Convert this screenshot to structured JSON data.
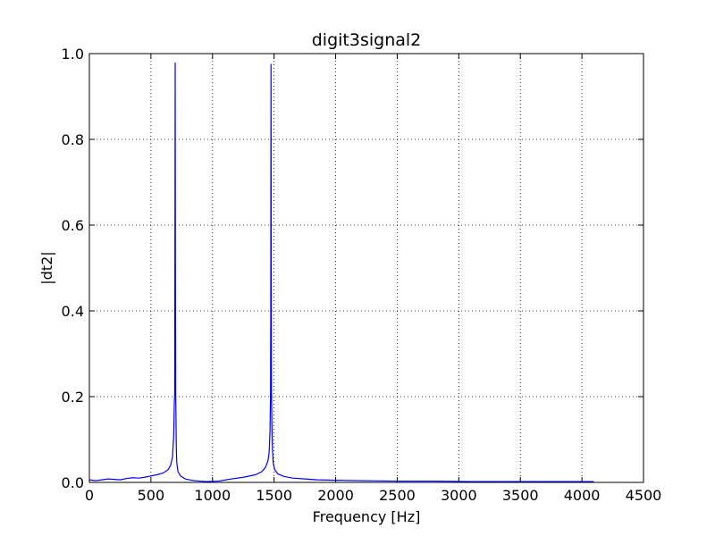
{
  "chart_data": {
    "type": "line",
    "title": "digit3signal2",
    "xlabel": "Frequency [Hz]",
    "ylabel": "|dt2|",
    "xlim": [
      0,
      4500
    ],
    "ylim": [
      0,
      1.0
    ],
    "grid": true,
    "grid_style": "dotted",
    "x_ticks": [
      0,
      500,
      1000,
      1500,
      2000,
      2500,
      3000,
      3500,
      4000,
      4500
    ],
    "x_tick_labels": [
      "0",
      "500",
      "1000",
      "1500",
      "2000",
      "2500",
      "3000",
      "3500",
      "4000",
      "4500"
    ],
    "y_ticks": [
      0,
      0.2,
      0.4,
      0.6,
      0.8,
      1.0
    ],
    "y_tick_labels": [
      "0.0",
      "0.2",
      "0.4",
      "0.6",
      "0.8",
      "1.0"
    ],
    "series": [
      {
        "color": "#0000ff",
        "x": [
          0,
          50,
          100,
          150,
          200,
          250,
          300,
          350,
          400,
          450,
          500,
          550,
          600,
          640,
          660,
          675,
          685,
          690,
          693,
          695,
          697,
          699,
          701,
          703,
          706,
          710,
          720,
          740,
          780,
          850,
          950,
          1050,
          1150,
          1250,
          1350,
          1400,
          1430,
          1450,
          1460,
          1467,
          1471,
          1473,
          1475,
          1477,
          1479,
          1482,
          1486,
          1493,
          1505,
          1530,
          1580,
          1650,
          1750,
          1850,
          2000,
          2200,
          2500,
          2800,
          3100,
          3400,
          3700,
          4000,
          4096
        ],
        "y": [
          0.006,
          0.004,
          0.006,
          0.008,
          0.007,
          0.006,
          0.009,
          0.011,
          0.01,
          0.012,
          0.015,
          0.018,
          0.022,
          0.03,
          0.04,
          0.06,
          0.11,
          0.19,
          0.205,
          0.6,
          0.978,
          0.5,
          0.205,
          0.16,
          0.08,
          0.045,
          0.025,
          0.015,
          0.008,
          0.004,
          0.002,
          0.003,
          0.008,
          0.012,
          0.018,
          0.025,
          0.035,
          0.05,
          0.07,
          0.12,
          0.2,
          0.4,
          0.975,
          0.5,
          0.21,
          0.14,
          0.08,
          0.045,
          0.03,
          0.02,
          0.014,
          0.01,
          0.008,
          0.006,
          0.005,
          0.004,
          0.003,
          0.003,
          0.002,
          0.002,
          0.002,
          0.002,
          0.002
        ]
      }
    ]
  }
}
